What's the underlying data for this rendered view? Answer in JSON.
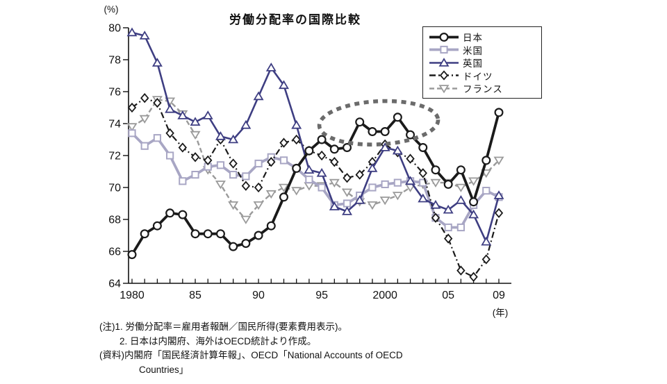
{
  "title": "労働分配率の国際比較",
  "axis": {
    "percent_label": "(%)",
    "year_label": "(年)",
    "x_tick_labels": {
      "1980": "1980",
      "1985": "85",
      "1990": "90",
      "1995": "95",
      "2000": "2000",
      "2005": "05",
      "2009": "09"
    }
  },
  "notes": {
    "lines": [
      "(注)1. 労働分配率＝雇用者報酬／国民所得(要素費用表示)。",
      "2. 日本は内閣府、海外はOECD統計より作成。",
      "(資料)内閣府「国民経済計算年報」、OECD「National Accounts of OECD",
      "Countries」"
    ]
  },
  "chart_data": {
    "type": "line",
    "title": "労働分配率の国際比較",
    "xlabel": "(年)",
    "ylabel": "(%)",
    "x": [
      1980,
      1981,
      1982,
      1983,
      1984,
      1985,
      1986,
      1987,
      1988,
      1989,
      1990,
      1991,
      1992,
      1993,
      1994,
      1995,
      1996,
      1997,
      1998,
      1999,
      2000,
      2001,
      2002,
      2003,
      2004,
      2005,
      2006,
      2007,
      2008,
      2009
    ],
    "ylim": [
      64,
      80
    ],
    "y_ticks": [
      64,
      66,
      68,
      70,
      72,
      74,
      76,
      78,
      80
    ],
    "grid": false,
    "legend_position": "top-right",
    "series": [
      {
        "key": "japan",
        "name": "日本",
        "color": "#1a1a1a",
        "marker": "circle",
        "dash": "solid",
        "width": 3.8,
        "values": [
          65.8,
          67.1,
          67.6,
          68.4,
          68.3,
          67.1,
          67.1,
          67.1,
          66.3,
          66.5,
          67.0,
          67.6,
          69.4,
          71.2,
          72.3,
          73.0,
          72.4,
          72.5,
          74.1,
          73.5,
          73.5,
          74.4,
          73.3,
          72.5,
          71.1,
          70.2,
          71.1,
          69.1,
          71.7,
          74.7
        ]
      },
      {
        "key": "us",
        "name": "米国",
        "color": "#a8a6c4",
        "marker": "square",
        "dash": "solid",
        "width": 3.8,
        "values": [
          73.4,
          72.6,
          73.1,
          72.0,
          70.4,
          70.8,
          71.3,
          71.4,
          70.8,
          70.7,
          71.5,
          71.9,
          71.7,
          71.2,
          70.5,
          70.0,
          68.9,
          69.0,
          69.5,
          70.0,
          70.2,
          70.3,
          70.4,
          70.3,
          68.1,
          67.5,
          67.5,
          68.9,
          69.8,
          69.4
        ]
      },
      {
        "key": "uk",
        "name": "英国",
        "color": "#3e3e82",
        "marker": "triangle-up",
        "dash": "solid",
        "width": 2.6,
        "values": [
          79.7,
          79.5,
          77.8,
          74.9,
          74.5,
          74.1,
          74.5,
          73.2,
          73.0,
          73.9,
          75.7,
          77.5,
          76.4,
          73.9,
          71.1,
          70.9,
          68.8,
          68.5,
          69.2,
          71.2,
          72.5,
          72.3,
          70.4,
          69.3,
          68.9,
          68.6,
          69.2,
          68.3,
          66.6,
          69.5
        ]
      },
      {
        "key": "germany",
        "name": "ドイツ",
        "color": "#1a1a1a",
        "marker": "diamond",
        "dash": "dashdot",
        "width": 2.2,
        "values": [
          75.0,
          75.6,
          75.3,
          73.4,
          72.5,
          71.9,
          71.7,
          73.0,
          71.5,
          70.1,
          70.0,
          71.6,
          72.8,
          73.0,
          72.3,
          72.0,
          71.6,
          70.6,
          70.8,
          71.6,
          72.7,
          72.2,
          71.8,
          70.9,
          68.1,
          66.8,
          64.8,
          64.4,
          65.5,
          68.4
        ]
      },
      {
        "key": "france",
        "name": "フランス",
        "color": "#9a9a9a",
        "marker": "triangle-down",
        "dash": "dashed",
        "width": 2.4,
        "values": [
          73.8,
          74.3,
          75.5,
          75.4,
          74.6,
          73.3,
          71.1,
          70.2,
          68.9,
          68.0,
          68.9,
          69.6,
          70.0,
          69.8,
          70.1,
          70.1,
          70.3,
          69.7,
          69.1,
          68.9,
          69.2,
          69.5,
          70.0,
          70.2,
          70.3,
          70.3,
          70.0,
          70.4,
          70.9,
          71.7
        ]
      }
    ],
    "annotation_ellipse": {
      "x_year": 1999.5,
      "y_value": 74.05,
      "rx_years": 4.7,
      "ry_values": 1.35,
      "rotation_deg": -3,
      "color": "#6b6b6b",
      "style": "dotted"
    }
  }
}
